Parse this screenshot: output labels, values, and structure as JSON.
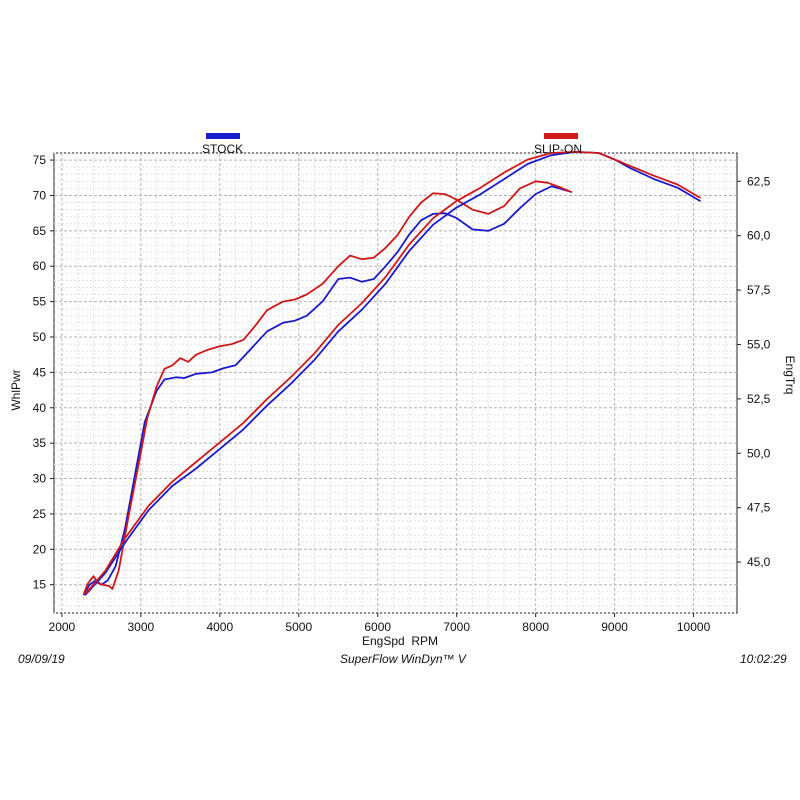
{
  "chart_data": {
    "type": "line",
    "xlabel": "EngSpd  RPM",
    "ylabel_left": "WhlPwr",
    "ylabel_right": "EngTrq",
    "xlim": [
      1900,
      10550
    ],
    "x_ticks": [
      2000,
      3000,
      4000,
      5000,
      6000,
      7000,
      8000,
      9000,
      10000
    ],
    "ylim_left": [
      11,
      76
    ],
    "y_ticks_left": [
      15,
      20,
      25,
      30,
      35,
      40,
      45,
      50,
      55,
      60,
      65,
      70,
      75
    ],
    "ylim_right": [
      42.66,
      63.8
    ],
    "y_ticks_right": [
      "45,0",
      "47,5",
      "50,0",
      "52,5",
      "55,0",
      "57,5",
      "60,0",
      "62,5"
    ],
    "y_tick_values_right": [
      45.0,
      47.5,
      50.0,
      52.5,
      55.0,
      57.5,
      60.0,
      62.5
    ],
    "grid": true,
    "legend": [
      {
        "name": "STOCK",
        "color": "#1a1acc"
      },
      {
        "name": "SLIP-ON",
        "color": "#d01818"
      }
    ],
    "series": [
      {
        "name": "STOCK",
        "quantity": "WhlPwr",
        "axis": "left",
        "color": "#1a1acc",
        "x": [
          2280,
          2350,
          2430,
          2500,
          2580,
          2680,
          2800,
          2950,
          3050,
          3200,
          3300,
          3450,
          3550,
          3700,
          3900,
          4050,
          4200,
          4350,
          4600,
          4800,
          4950,
          5100,
          5300,
          5500,
          5650,
          5800,
          5950,
          6100,
          6250,
          6400,
          6550,
          6700,
          6850,
          7000,
          7200,
          7400,
          7600,
          7800,
          8000,
          8200,
          8300,
          8450
        ],
        "y": [
          13.6,
          15.0,
          15.6,
          15.0,
          15.6,
          17.6,
          23.0,
          32.0,
          38.0,
          42.4,
          44.0,
          44.3,
          44.2,
          44.8,
          45.0,
          45.6,
          46.0,
          47.8,
          50.8,
          52.0,
          52.3,
          53.0,
          55.0,
          58.2,
          58.4,
          57.8,
          58.2,
          60.0,
          62.0,
          64.5,
          66.5,
          67.4,
          67.5,
          66.8,
          65.2,
          65.0,
          66.0,
          68.2,
          70.2,
          71.3,
          71.0,
          70.5
        ]
      },
      {
        "name": "SLIP-ON",
        "quantity": "WhlPwr",
        "axis": "left",
        "color": "#d01818",
        "x": [
          2280,
          2330,
          2400,
          2460,
          2520,
          2600,
          2640,
          2720,
          2850,
          2980,
          3080,
          3200,
          3300,
          3400,
          3500,
          3600,
          3700,
          3850,
          4000,
          4150,
          4300,
          4450,
          4600,
          4800,
          4950,
          5100,
          5300,
          5500,
          5650,
          5800,
          5950,
          6100,
          6250,
          6400,
          6550,
          6700,
          6850,
          7000,
          7200,
          7400,
          7600,
          7800,
          8000,
          8150,
          8300,
          8450
        ],
        "y": [
          13.8,
          15.2,
          16.2,
          15.2,
          15.0,
          14.8,
          14.4,
          17.0,
          25.0,
          32.5,
          38.5,
          43.0,
          45.5,
          46.0,
          47.0,
          46.5,
          47.5,
          48.2,
          48.7,
          49.0,
          49.6,
          51.6,
          53.8,
          55.0,
          55.3,
          56.0,
          57.5,
          60.0,
          61.5,
          61.0,
          61.2,
          62.6,
          64.4,
          67.0,
          69.0,
          70.3,
          70.2,
          69.4,
          68.0,
          67.4,
          68.5,
          71.0,
          72.0,
          71.8,
          71.2,
          70.5
        ]
      },
      {
        "name": "STOCK",
        "quantity": "EngTrq",
        "axis": "right",
        "color": "#1a1acc",
        "x": [
          2300,
          2550,
          2800,
          3100,
          3400,
          3700,
          4000,
          4300,
          4600,
          4900,
          5200,
          5500,
          5800,
          6100,
          6400,
          6700,
          7000,
          7300,
          7600,
          7900,
          8200,
          8500,
          8800,
          9000,
          9200,
          9500,
          9800,
          10080
        ],
        "y": [
          43.5,
          44.5,
          45.9,
          47.4,
          48.5,
          49.3,
          50.2,
          51.1,
          52.2,
          53.2,
          54.3,
          55.6,
          56.6,
          57.8,
          59.3,
          60.5,
          61.3,
          61.9,
          62.6,
          63.3,
          63.7,
          63.85,
          63.8,
          63.5,
          63.1,
          62.6,
          62.2,
          61.6
        ]
      },
      {
        "name": "SLIP-ON",
        "quantity": "EngTrq",
        "axis": "right",
        "color": "#d01818",
        "x": [
          2300,
          2550,
          2800,
          3100,
          3400,
          3700,
          4000,
          4300,
          4600,
          4900,
          5200,
          5500,
          5800,
          6100,
          6400,
          6700,
          7000,
          7300,
          7600,
          7900,
          8200,
          8500,
          8800,
          9000,
          9200,
          9500,
          9800,
          10080
        ],
        "y": [
          43.55,
          44.6,
          46.1,
          47.6,
          48.7,
          49.6,
          50.5,
          51.4,
          52.5,
          53.5,
          54.6,
          55.9,
          56.9,
          58.1,
          59.6,
          60.8,
          61.6,
          62.2,
          62.9,
          63.5,
          63.8,
          63.85,
          63.8,
          63.5,
          63.2,
          62.75,
          62.35,
          61.75
        ]
      }
    ]
  },
  "footer": {
    "date": "09/09/19",
    "software": "SuperFlow WinDyn™ V",
    "time": "10:02:29"
  }
}
